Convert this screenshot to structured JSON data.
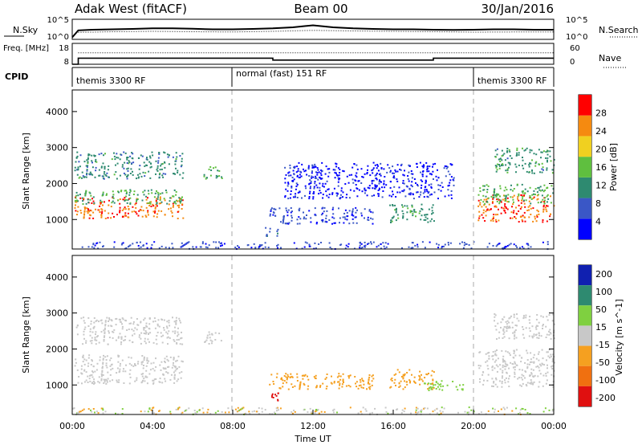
{
  "chart_data": [
    {
      "type": "line",
      "panel": "noise",
      "title_left": "Adak West (fitACF)",
      "title_center": "Beam 00",
      "title_right": "30/Jan/2016",
      "ylabel_left": "N.Sky",
      "ylabel_right": "N.Search",
      "yticks_left": [
        "10^5",
        "10^0"
      ],
      "yticks_right": [
        "10^5",
        "10^0"
      ],
      "series": [
        {
          "name": "N.Sky",
          "style": "solid",
          "x": [
            0.0,
            0.3,
            1.0,
            2.0,
            3.0,
            4.0,
            5.0,
            6.0,
            7.0,
            8.0,
            9.0,
            10.0,
            11.0,
            12.0,
            13.0,
            14.0,
            15.0,
            16.0,
            17.0,
            18.0,
            19.0,
            20.0,
            21.0,
            22.0,
            23.0,
            24.0
          ],
          "y": [
            0.1,
            0.45,
            0.48,
            0.5,
            0.52,
            0.55,
            0.55,
            0.53,
            0.5,
            0.5,
            0.52,
            0.55,
            0.6,
            0.7,
            0.6,
            0.55,
            0.52,
            0.5,
            0.5,
            0.48,
            0.47,
            0.48,
            0.5,
            0.5,
            0.48,
            0.48
          ]
        },
        {
          "name": "N.Search",
          "style": "dotted",
          "x": [
            0.3,
            2.0,
            4.0,
            6.0,
            8.0,
            10.0,
            12.0,
            14.0,
            16.0,
            18.0,
            20.0,
            22.0,
            24.0
          ],
          "y": [
            0.35,
            0.38,
            0.4,
            0.38,
            0.37,
            0.4,
            0.45,
            0.42,
            0.4,
            0.38,
            0.36,
            0.37,
            0.37
          ]
        }
      ]
    },
    {
      "type": "line",
      "panel": "frequency",
      "ylabel_left": "Freq. [MHz]",
      "ylabel_right": "Nave",
      "yticks_left": [
        "18",
        "8"
      ],
      "yticks_right": [
        "60",
        "0"
      ],
      "ylim_left": [
        8,
        18
      ],
      "ylim_right": [
        0,
        60
      ],
      "series": [
        {
          "name": "Freq.",
          "style": "solid",
          "x": [
            0.0,
            0.3,
            10.0,
            18.0,
            24.0
          ],
          "y": [
            8.0,
            10.9,
            10.0,
            10.9,
            10.9
          ]
        },
        {
          "name": "Nave",
          "style": "dotted",
          "x": [
            0.3,
            24.0
          ],
          "y": [
            33,
            33
          ]
        }
      ]
    },
    {
      "type": "table",
      "panel": "cpid",
      "ylabel": "CPID",
      "segments": [
        {
          "start": 0.0,
          "end": 7.95,
          "label": "themis 3300 RF"
        },
        {
          "start": 7.95,
          "end": 20.0,
          "label": "normal (fast) 151 RF"
        },
        {
          "start": 20.0,
          "end": 24.0,
          "label": "themis 3300 RF"
        }
      ]
    },
    {
      "type": "heatmap",
      "panel": "power",
      "ylabel": "Slant Range [km]",
      "ylim": [
        180,
        4600
      ],
      "yticks": [
        1000,
        2000,
        3000,
        4000
      ],
      "colorbar_label": "Power [dB]",
      "colorbar_ticks": [
        4,
        8,
        12,
        16,
        20,
        24,
        28
      ],
      "colorbar_range": [
        0,
        32
      ],
      "colorbar_colors": [
        "#0000ff",
        "#3a57c6",
        "#2e8a70",
        "#5fbf3f",
        "#f0d020",
        "#f58a10",
        "#ff0000"
      ],
      "regions": [
        {
          "t0": 0.1,
          "t1": 5.5,
          "r0": 1050,
          "r1": 1650,
          "val": 27
        },
        {
          "t0": 0.1,
          "t1": 5.5,
          "r0": 1450,
          "r1": 1850,
          "val": 14
        },
        {
          "t0": 0.1,
          "t1": 5.5,
          "r0": 2150,
          "r1": 2900,
          "val": 11
        },
        {
          "t0": 6.5,
          "t1": 7.5,
          "r0": 2150,
          "r1": 2500,
          "val": 13
        },
        {
          "t0": 9.8,
          "t1": 15.0,
          "r0": 900,
          "r1": 1350,
          "val": 6
        },
        {
          "t0": 15.8,
          "t1": 18.0,
          "r0": 900,
          "r1": 1450,
          "val": 12
        },
        {
          "t0": 10.5,
          "t1": 19.0,
          "r0": 1600,
          "r1": 2600,
          "val": 3
        },
        {
          "t0": 9.6,
          "t1": 10.3,
          "r0": 550,
          "r1": 800,
          "val": 9
        },
        {
          "t0": 20.2,
          "t1": 24.0,
          "r0": 950,
          "r1": 1700,
          "val": 27
        },
        {
          "t0": 20.2,
          "t1": 24.0,
          "r0": 1450,
          "r1": 2000,
          "val": 15
        },
        {
          "t0": 21.0,
          "t1": 24.0,
          "r0": 2300,
          "r1": 3000,
          "val": 12
        }
      ]
    },
    {
      "type": "heatmap",
      "panel": "velocity",
      "ylabel": "Slant Range [km]",
      "xlabel": "Time UT",
      "ylim": [
        180,
        4600
      ],
      "xlim": [
        0,
        24
      ],
      "yticks": [
        1000,
        2000,
        3000,
        4000
      ],
      "xticks": [
        "00:00",
        "04:00",
        "08:00",
        "12:00",
        "16:00",
        "20:00",
        "00:00"
      ],
      "colorbar_label": "Velocity [m s^-1]",
      "colorbar_ticks": [
        200,
        100,
        50,
        15,
        -15,
        -50,
        -100,
        -200
      ],
      "colorbar_colors": [
        "#1020b0",
        "#2e8a70",
        "#7fd040",
        "#c8c8c8",
        "#f5a020",
        "#f07010",
        "#e01010"
      ],
      "regions": [
        {
          "t0": 0.1,
          "t1": 5.5,
          "r0": 1050,
          "r1": 1850,
          "val": 0
        },
        {
          "t0": 0.1,
          "t1": 5.5,
          "r0": 2150,
          "r1": 2900,
          "val": 0
        },
        {
          "t0": 6.5,
          "t1": 7.5,
          "r0": 2150,
          "r1": 2500,
          "val": 0
        },
        {
          "t0": 9.8,
          "t1": 15.0,
          "r0": 900,
          "r1": 1350,
          "val": -40
        },
        {
          "t0": 15.8,
          "t1": 18.0,
          "r0": 900,
          "r1": 1450,
          "val": -40
        },
        {
          "t0": 17.5,
          "t1": 19.5,
          "r0": 850,
          "r1": 1150,
          "val": 40
        },
        {
          "t0": 9.6,
          "t1": 10.3,
          "r0": 550,
          "r1": 800,
          "val": -120
        },
        {
          "t0": 20.2,
          "t1": 24.0,
          "r0": 950,
          "r1": 2000,
          "val": 0
        },
        {
          "t0": 21.0,
          "t1": 24.0,
          "r0": 2300,
          "r1": 3000,
          "val": 0
        }
      ]
    }
  ]
}
